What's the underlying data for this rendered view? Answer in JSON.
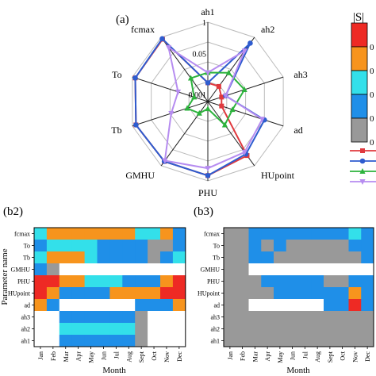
{
  "colors": {
    "palette": [
      "#ffffff",
      "#999999",
      "#1f8fe8",
      "#33e0ea",
      "#f7941d",
      "#ee2a24"
    ],
    "line_red": "#e0393e",
    "line_blue": "#2e5ccf",
    "line_green": "#2db33d",
    "line_purple": "#b68cf0",
    "grid": "#bbbbbb"
  },
  "colorbar": {
    "title": "|S|",
    "labels": [
      "0",
      "0",
      "0",
      "0",
      "0"
    ]
  },
  "chart_data": [
    {
      "panel": "(a)",
      "type": "radar",
      "axes": [
        "ah1",
        "ah2",
        "ah3",
        "ad",
        "HUpoint",
        "PHU",
        "GMHU",
        "Tb",
        "To",
        "fcmax"
      ],
      "rlim": [
        0,
        1
      ],
      "rscale": "log",
      "rtick_labels": [
        "1",
        "0.05",
        "0.001"
      ],
      "legend_placement": "right",
      "series": [
        {
          "color_key": "line_red",
          "marker": "square",
          "values": [
            0.003,
            0.003,
            0.002,
            0.002,
            0.3,
            0.6,
            0.6,
            0.7,
            0.75,
            0.8
          ]
        },
        {
          "color_key": "line_blue",
          "marker": "circle",
          "values": [
            0.003,
            0.5,
            0.003,
            0.15,
            0.25,
            0.6,
            0.6,
            0.7,
            0.75,
            0.85
          ]
        },
        {
          "color_key": "line_green",
          "marker": "triangle",
          "values": [
            0.008,
            0.015,
            0.02,
            0.006,
            0.008,
            0.001,
            0.002,
            0.004,
            0.002,
            0.008
          ]
        },
        {
          "color_key": "line_purple",
          "marker": "triangle-down",
          "values": [
            0.008,
            0.2,
            0.003,
            0.12,
            0.2,
            0.3,
            0.55,
            0.02,
            0.01,
            0.3
          ]
        }
      ]
    },
    {
      "panel": "(b2)",
      "type": "heatmap",
      "xlabel": "Month",
      "ylabel": "Parameter name",
      "x": [
        "Jan",
        "Feb",
        "Mar",
        "Apr",
        "May",
        "Jun",
        "Jul",
        "Aug",
        "Sept",
        "Oct",
        "Nov",
        "Dec"
      ],
      "y": [
        "fcmax",
        "To",
        "Tb",
        "GMHU",
        "PHU",
        "HUpoint",
        "ad",
        "ah3",
        "ah2",
        "ah1"
      ],
      "value_meaning": "color level 0-5 (0 white, 1 gray, 2 blue, 3 cyan, 4 orange, 5 red)",
      "values": [
        [
          3,
          4,
          4,
          4,
          4,
          4,
          4,
          4,
          3,
          3,
          4,
          2
        ],
        [
          2,
          3,
          3,
          3,
          3,
          2,
          2,
          2,
          2,
          1,
          1,
          2
        ],
        [
          3,
          4,
          4,
          4,
          3,
          2,
          2,
          2,
          2,
          1,
          2,
          3
        ],
        [
          2,
          1,
          0,
          0,
          0,
          0,
          0,
          0,
          0,
          0,
          0,
          0
        ],
        [
          5,
          5,
          4,
          4,
          3,
          3,
          3,
          2,
          2,
          2,
          4,
          5
        ],
        [
          5,
          4,
          2,
          2,
          2,
          2,
          4,
          4,
          4,
          4,
          5,
          5
        ],
        [
          4,
          2,
          0,
          0,
          0,
          0,
          0,
          0,
          2,
          2,
          2,
          4
        ],
        [
          0,
          0,
          2,
          2,
          2,
          2,
          2,
          2,
          1,
          0,
          0,
          0
        ],
        [
          0,
          0,
          3,
          3,
          3,
          3,
          3,
          3,
          1,
          0,
          0,
          0
        ],
        [
          0,
          0,
          2,
          2,
          2,
          2,
          2,
          2,
          1,
          0,
          0,
          0
        ]
      ]
    },
    {
      "panel": "(b3)",
      "type": "heatmap",
      "xlabel": "Month",
      "ylabel": "",
      "x": [
        "Jan",
        "Feb",
        "Mar",
        "Apr",
        "May",
        "Jun",
        "Jul",
        "Aug",
        "Sept",
        "Oct",
        "Nov",
        "Dec"
      ],
      "y": [
        "fcmax",
        "To",
        "Tb",
        "GMHU",
        "PHU",
        "HUpoint",
        "ad",
        "ah3",
        "ah2",
        "ah1"
      ],
      "value_meaning": "color level 0-5 (0 white, 1 gray, 2 blue, 3 cyan, 4 orange, 5 red)",
      "values": [
        [
          1,
          1,
          2,
          2,
          2,
          2,
          2,
          2,
          2,
          2,
          3,
          2
        ],
        [
          1,
          1,
          2,
          1,
          2,
          1,
          1,
          1,
          1,
          1,
          2,
          2
        ],
        [
          1,
          1,
          2,
          2,
          1,
          1,
          1,
          1,
          1,
          1,
          1,
          2
        ],
        [
          1,
          1,
          0,
          0,
          0,
          0,
          0,
          0,
          0,
          0,
          0,
          0
        ],
        [
          1,
          1,
          1,
          2,
          2,
          2,
          2,
          2,
          1,
          1,
          2,
          2
        ],
        [
          1,
          1,
          1,
          1,
          2,
          2,
          2,
          2,
          2,
          2,
          4,
          2
        ],
        [
          1,
          1,
          0,
          0,
          0,
          0,
          0,
          0,
          2,
          2,
          5,
          2
        ],
        [
          1,
          1,
          1,
          1,
          1,
          1,
          1,
          1,
          1,
          1,
          1,
          1
        ],
        [
          1,
          1,
          1,
          1,
          1,
          1,
          1,
          1,
          1,
          1,
          1,
          1
        ],
        [
          1,
          1,
          1,
          1,
          1,
          1,
          1,
          1,
          1,
          1,
          1,
          1
        ]
      ]
    }
  ]
}
